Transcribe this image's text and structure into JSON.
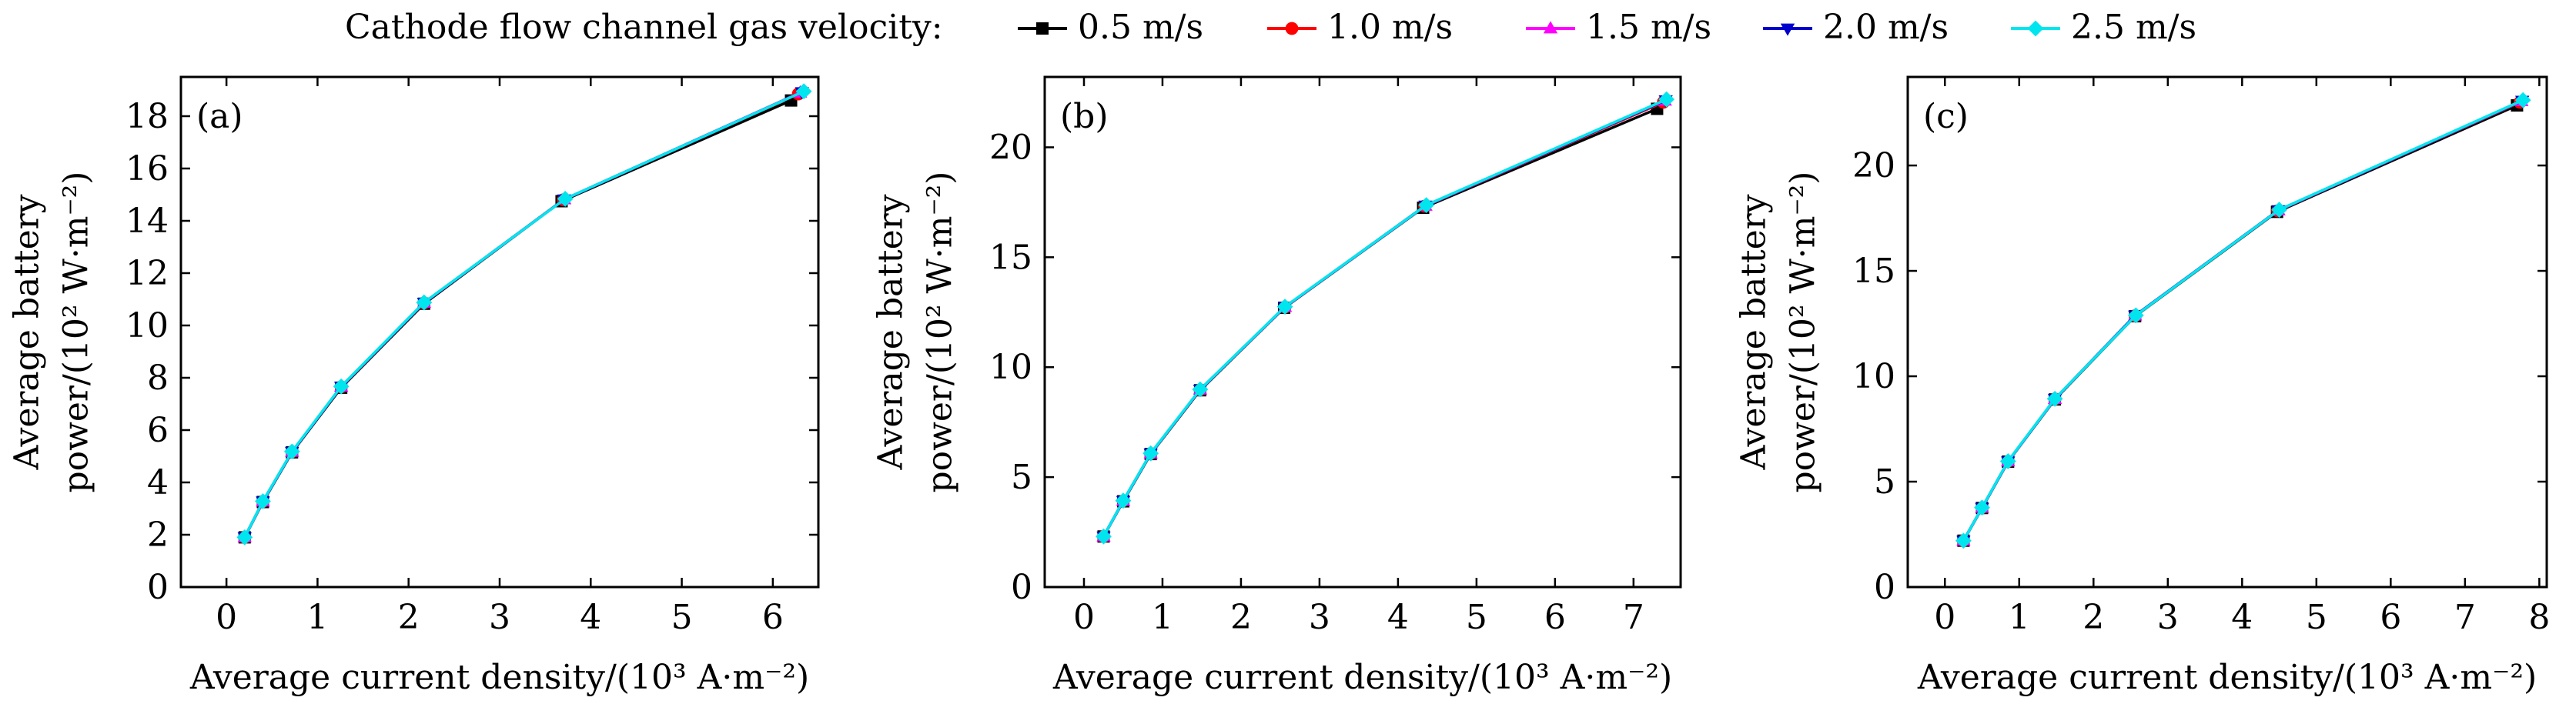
{
  "legend": {
    "title": "Cathode flow channel gas velocity:"
  },
  "chart_data": [
    {
      "type": "line",
      "panel_label": "(a)",
      "xlabel": "Average current density/(10³ A·m⁻²)",
      "ylabel_line1": "Average battery",
      "ylabel_line2": "power/(10² W·m⁻²)",
      "xlim": [
        -0.5,
        6.5
      ],
      "ylim": [
        0,
        19.5
      ],
      "xticks": [
        0,
        1,
        2,
        3,
        4,
        5,
        6
      ],
      "yticks": [
        0,
        2,
        4,
        6,
        8,
        10,
        12,
        14,
        16,
        18
      ],
      "series": [
        {
          "name": "0.5 m/s",
          "color": "#000000",
          "marker": "square",
          "x": [
            0.2,
            0.4,
            0.72,
            1.26,
            2.17,
            3.68,
            6.2
          ],
          "y": [
            1.9,
            3.25,
            5.15,
            7.62,
            10.83,
            14.75,
            18.6
          ]
        },
        {
          "name": "1.0 m/s",
          "color": "#ff0000",
          "marker": "circle",
          "x": [
            0.2,
            0.4,
            0.72,
            1.26,
            2.17,
            3.7,
            6.28
          ],
          "y": [
            1.9,
            3.27,
            5.17,
            7.65,
            10.86,
            14.8,
            18.85
          ]
        },
        {
          "name": "1.5 m/s",
          "color": "#ff00ff",
          "marker": "triangle-up",
          "x": [
            0.2,
            0.4,
            0.72,
            1.26,
            2.17,
            3.71,
            6.3
          ],
          "y": [
            1.9,
            3.27,
            5.17,
            7.66,
            10.87,
            14.82,
            18.9
          ]
        },
        {
          "name": "2.0 m/s",
          "color": "#0000cc",
          "marker": "triangle-down",
          "x": [
            0.2,
            0.4,
            0.72,
            1.26,
            2.17,
            3.71,
            6.32
          ],
          "y": [
            1.9,
            3.27,
            5.17,
            7.66,
            10.87,
            14.82,
            18.92
          ]
        },
        {
          "name": "2.5 m/s",
          "color": "#00e5ee",
          "marker": "diamond",
          "x": [
            0.2,
            0.4,
            0.72,
            1.26,
            2.17,
            3.72,
            6.34
          ],
          "y": [
            1.9,
            3.28,
            5.18,
            7.67,
            10.88,
            14.84,
            18.95
          ]
        }
      ]
    },
    {
      "type": "line",
      "panel_label": "(b)",
      "xlabel": "Average current density/(10³ A·m⁻²)",
      "ylabel_line1": "Average battery",
      "ylabel_line2": "power/(10² W·m⁻²)",
      "xlim": [
        -0.5,
        7.6
      ],
      "ylim": [
        0,
        23.2
      ],
      "xticks": [
        0,
        1,
        2,
        3,
        4,
        5,
        6,
        7
      ],
      "yticks": [
        0,
        5,
        10,
        15,
        20
      ],
      "series": [
        {
          "name": "0.5 m/s",
          "color": "#000000",
          "marker": "square",
          "x": [
            0.25,
            0.5,
            0.85,
            1.48,
            2.55,
            4.32,
            7.3
          ],
          "y": [
            2.3,
            3.9,
            6.05,
            8.95,
            12.7,
            17.25,
            21.75
          ]
        },
        {
          "name": "1.0 m/s",
          "color": "#ff0000",
          "marker": "circle",
          "x": [
            0.25,
            0.5,
            0.85,
            1.48,
            2.56,
            4.34,
            7.38
          ],
          "y": [
            2.3,
            3.92,
            6.07,
            8.97,
            12.73,
            17.32,
            22.05
          ]
        },
        {
          "name": "1.5 m/s",
          "color": "#ff00ff",
          "marker": "triangle-up",
          "x": [
            0.25,
            0.5,
            0.85,
            1.48,
            2.56,
            4.35,
            7.4
          ],
          "y": [
            2.3,
            3.92,
            6.07,
            8.98,
            12.74,
            17.34,
            22.12
          ]
        },
        {
          "name": "2.0 m/s",
          "color": "#0000cc",
          "marker": "triangle-down",
          "x": [
            0.25,
            0.5,
            0.85,
            1.48,
            2.56,
            4.35,
            7.41
          ],
          "y": [
            2.3,
            3.92,
            6.07,
            8.98,
            12.74,
            17.35,
            22.14
          ]
        },
        {
          "name": "2.5 m/s",
          "color": "#00e5ee",
          "marker": "diamond",
          "x": [
            0.25,
            0.5,
            0.85,
            1.48,
            2.56,
            4.36,
            7.42
          ],
          "y": [
            2.3,
            3.93,
            6.08,
            8.99,
            12.75,
            17.37,
            22.18
          ]
        }
      ]
    },
    {
      "type": "line",
      "panel_label": "(c)",
      "xlabel": "Average current density/(10³ A·m⁻²)",
      "ylabel_line1": "Average battery",
      "ylabel_line2": "power/(10² W·m⁻²)",
      "xlim": [
        -0.5,
        8.1
      ],
      "ylim": [
        0,
        24.2
      ],
      "xticks": [
        0,
        1,
        2,
        3,
        4,
        5,
        6,
        7,
        8
      ],
      "yticks": [
        0,
        5,
        10,
        15,
        20
      ],
      "series": [
        {
          "name": "0.5 m/s",
          "color": "#000000",
          "marker": "square",
          "x": [
            0.25,
            0.5,
            0.85,
            1.48,
            2.56,
            4.47,
            7.7
          ],
          "y": [
            2.2,
            3.75,
            5.95,
            8.9,
            12.85,
            17.8,
            22.85
          ]
        },
        {
          "name": "1.0 m/s",
          "color": "#ff0000",
          "marker": "circle",
          "x": [
            0.25,
            0.5,
            0.85,
            1.48,
            2.56,
            4.48,
            7.74
          ],
          "y": [
            2.2,
            3.76,
            5.96,
            8.92,
            12.87,
            17.85,
            23.0
          ]
        },
        {
          "name": "1.5 m/s",
          "color": "#ff00ff",
          "marker": "triangle-up",
          "x": [
            0.25,
            0.5,
            0.85,
            1.48,
            2.56,
            4.49,
            7.76
          ],
          "y": [
            2.2,
            3.76,
            5.96,
            8.92,
            12.88,
            17.87,
            23.05
          ]
        },
        {
          "name": "2.0 m/s",
          "color": "#0000cc",
          "marker": "triangle-down",
          "x": [
            0.25,
            0.5,
            0.85,
            1.48,
            2.56,
            4.49,
            7.77
          ],
          "y": [
            2.2,
            3.76,
            5.96,
            8.92,
            12.88,
            17.88,
            23.07
          ]
        },
        {
          "name": "2.5 m/s",
          "color": "#00e5ee",
          "marker": "diamond",
          "x": [
            0.25,
            0.5,
            0.85,
            1.48,
            2.57,
            4.5,
            7.78
          ],
          "y": [
            2.2,
            3.77,
            5.97,
            8.93,
            12.89,
            17.9,
            23.1
          ]
        }
      ]
    }
  ]
}
